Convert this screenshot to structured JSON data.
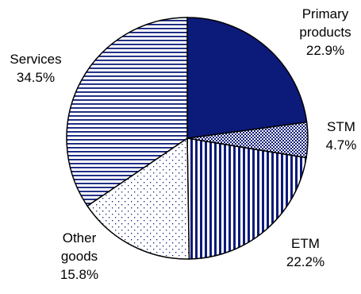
{
  "chart_data": {
    "type": "pie",
    "title": "",
    "start_angle_deg": 0,
    "direction": "clockwise",
    "slices": [
      {
        "name": "Primary products",
        "label_lines": [
          "Primary",
          "products"
        ],
        "value": 22.9,
        "value_label": "22.9%",
        "fill": "solid",
        "color": "#0c1a7a"
      },
      {
        "name": "STM",
        "label_lines": [
          "STM"
        ],
        "value": 4.7,
        "value_label": "4.7%",
        "fill": "dots-dense",
        "color": "#0c1a7a"
      },
      {
        "name": "ETM",
        "label_lines": [
          "ETM"
        ],
        "value": 22.2,
        "value_label": "22.2%",
        "fill": "vertical-lines",
        "color": "#0c1a7a"
      },
      {
        "name": "Other goods",
        "label_lines": [
          "Other",
          "goods"
        ],
        "value": 15.8,
        "value_label": "15.8%",
        "fill": "dots-sparse",
        "color": "#0c1a7a"
      },
      {
        "name": "Services",
        "label_lines": [
          "Services"
        ],
        "value": 34.5,
        "value_label": "34.5%",
        "fill": "horizontal-lines",
        "color": "#0c1a7a"
      }
    ]
  }
}
